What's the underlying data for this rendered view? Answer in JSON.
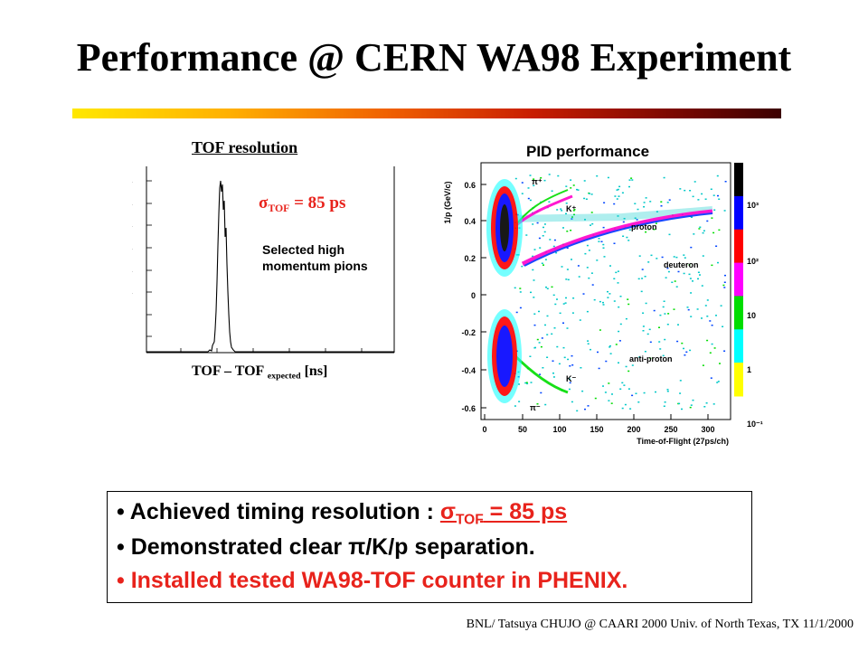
{
  "slide": {
    "title": "Performance @ CERN WA98 Experiment",
    "footer": "BNL/ Tatsuya CHUJO @ CAARI 2000 Univ. of North Texas, TX  11/1/2000"
  },
  "tof_panel": {
    "title": "TOF resolution",
    "sigma_symbol": "σ",
    "sigma_subscript": "TOF",
    "sigma_value": " = 85 ps",
    "note_line1": "Selected high",
    "note_line2": "momentum pions",
    "xlabel_main": "TOF – TOF ",
    "xlabel_sub": "expected",
    "xlabel_unit": " [ns]"
  },
  "pid_panel": {
    "title": "PID performance",
    "ylabel": "1/p (GeV/c)",
    "xlabel": "Time-of-Flight (27ps/ch)",
    "x_ticks": [
      "0",
      "50",
      "100",
      "150",
      "200",
      "250",
      "300"
    ],
    "y_ticks": [
      "0.6",
      "0.4",
      "0.2",
      "0",
      "-0.2",
      "-0.4",
      "-0.6"
    ],
    "labels": {
      "pi_plus": "π⁺",
      "k_plus": "K⁺",
      "proton": "proton",
      "deuteron": "deuteron",
      "anti_proton": "anti-proton",
      "k_minus": "K⁻",
      "pi_minus": "π⁻"
    },
    "colorbar_ticks": [
      "10³",
      "10²",
      "10",
      "1",
      "10⁻¹"
    ],
    "colorbar_colors": [
      "#000000",
      "#0000ff",
      "#ff0000",
      "#ff00ff",
      "#00dd00",
      "#00ffff",
      "#ffff00"
    ]
  },
  "summary": {
    "bullet1_text": "Achieved timing resolution  : ",
    "bullet1_sigma": "σ",
    "bullet1_sub": "TOF",
    "bullet1_value": " = 85 ps",
    "bullet2": "Demonstrated clear π/K/p separation.",
    "bullet3": "Installed tested WA98-TOF counter in PHENIX."
  },
  "colors": {
    "accent_red": "#e8231c"
  }
}
